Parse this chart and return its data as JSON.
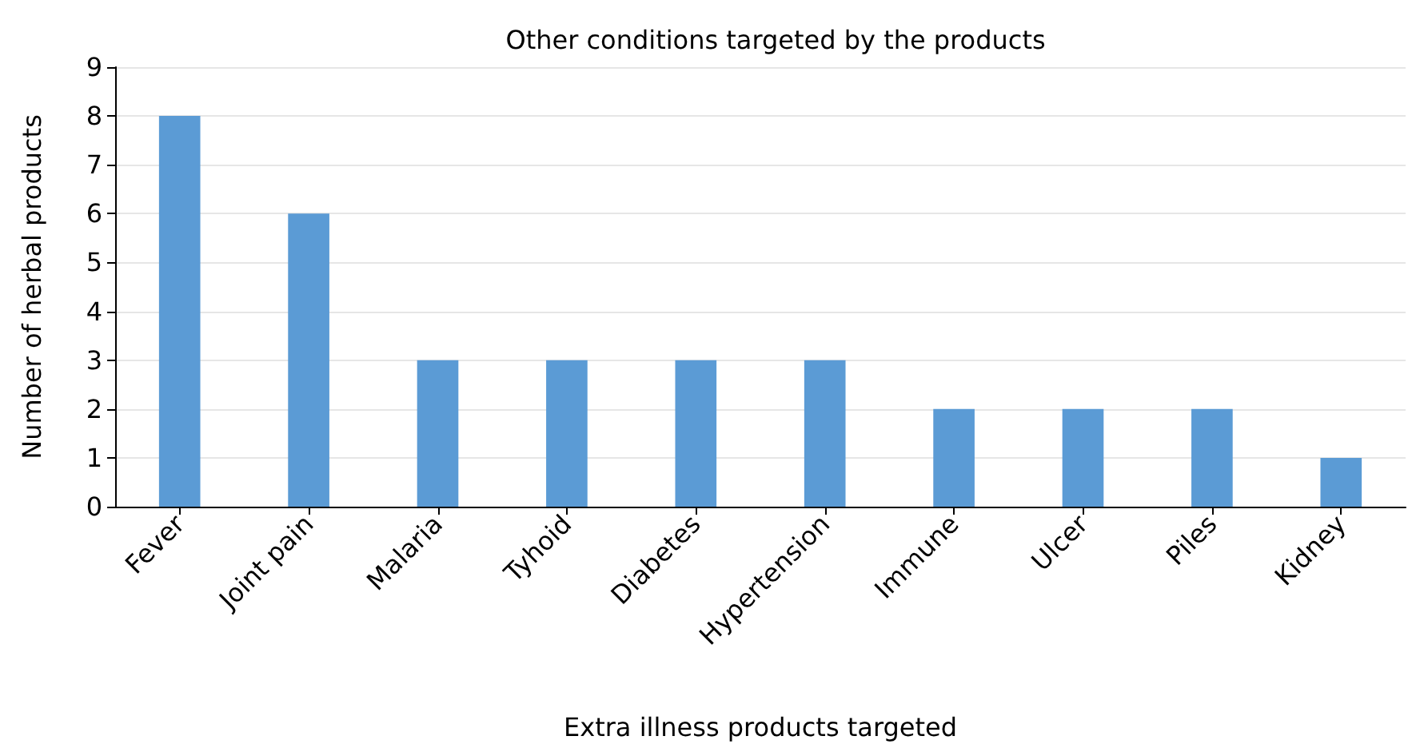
{
  "chart_data": {
    "type": "bar",
    "title": "Other conditions targeted by the products",
    "xlabel": "Extra illness products targeted",
    "ylabel": "Number of herbal products",
    "categories": [
      "Fever",
      "Joint pain",
      "Malaria",
      "Tyhoid",
      "Diabetes",
      "Hypertension",
      "Immune",
      "Ulcer",
      "Piles",
      "Kidney"
    ],
    "values": [
      8,
      6,
      3,
      3,
      3,
      3,
      2,
      2,
      2,
      1
    ],
    "color": "#5b9bd5",
    "ylim": [
      0,
      9
    ],
    "yticks": [
      0,
      1,
      2,
      3,
      4,
      5,
      6,
      7,
      8,
      9
    ],
    "grid": "y"
  }
}
